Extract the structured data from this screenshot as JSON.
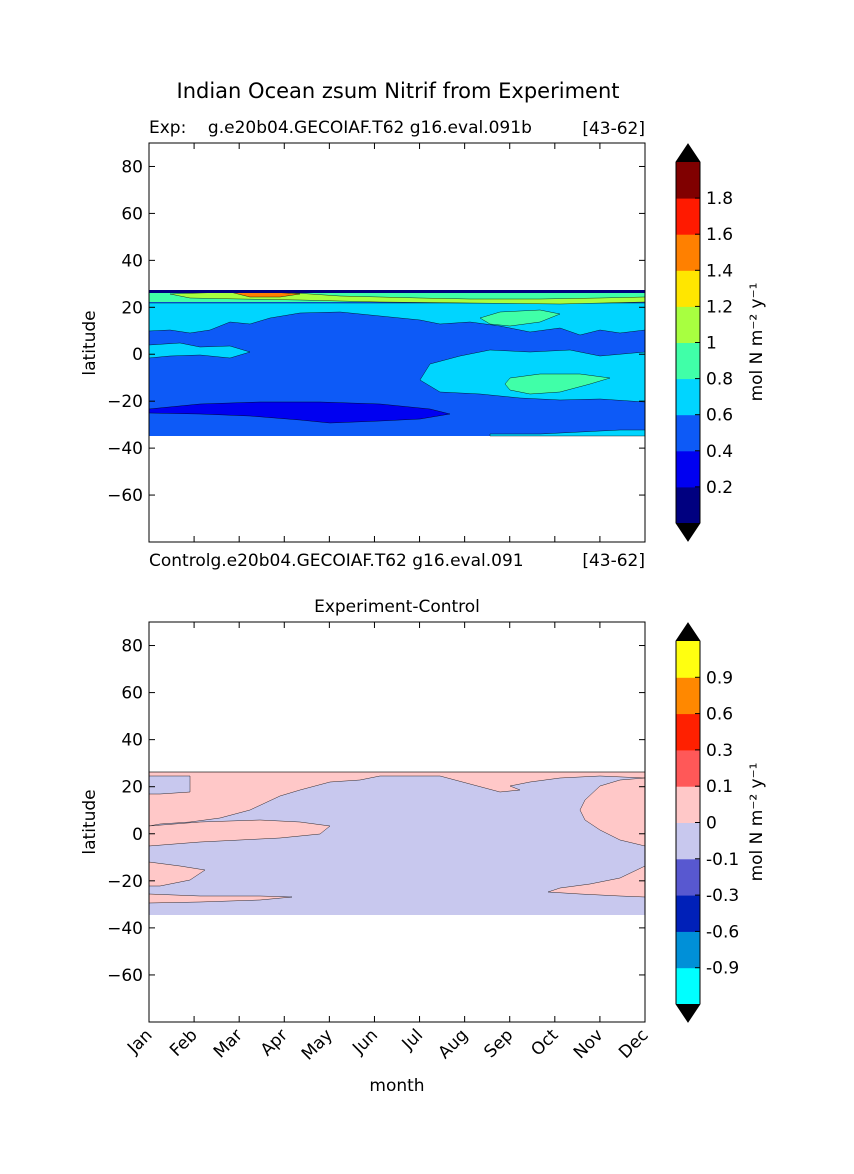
{
  "suptitle": "Indian Ocean zsum Nitrif from Experiment",
  "chart_data": [
    {
      "type": "heatmap",
      "panel": "experiment",
      "title_left": "Exp:    g.e20b04.GECOIAF.T62 g16.eval.091b",
      "title_right": "[43-62]",
      "xlabel": "",
      "ylabel": "latitude",
      "ylim": [
        -80,
        90
      ],
      "yticks": [
        80,
        60,
        40,
        20,
        0,
        -20,
        -40,
        -60
      ],
      "x_categories": [
        "Jan",
        "Feb",
        "Mar",
        "Apr",
        "May",
        "Jun",
        "Jul",
        "Aug",
        "Sep",
        "Oct",
        "Nov",
        "Dec"
      ],
      "data_lat_range": [
        -34,
        27
      ],
      "colorbar": {
        "label": "mol N m⁻² y⁻¹",
        "levels": [
          0.2,
          0.4,
          0.6,
          0.8,
          1,
          1.2,
          1.4,
          1.6,
          1.8
        ],
        "tick_labels": [
          "0.2",
          "0.4",
          "0.6",
          "0.8",
          "1",
          "1.2",
          "1.4",
          "1.6",
          "1.8"
        ],
        "colors": [
          "#000080",
          "#0000f1",
          "#0d5af7",
          "#00d5ff",
          "#40ffa8",
          "#a8ff40",
          "#ffe600",
          "#ff8000",
          "#ff1a00",
          "#800000"
        ],
        "extend": "both"
      },
      "contour_regions": [
        {
          "value_band": "0.4-0.6",
          "desc": "background field -34 to 25 N"
        },
        {
          "value_band": "0.6-0.8",
          "desc": "northern band 14-22 N all months, south-east band Sep-Dec around -5 to -18"
        },
        {
          "value_band": "0.8-1.0",
          "desc": "patch around -10 in Oct; 20 N in Aug-Sep"
        },
        {
          "value_band": "0.2-0.4",
          "desc": "band near -25 S Jan-Aug"
        },
        {
          "value_band": "1.0-1.8",
          "desc": "thin band 21-27 N"
        }
      ]
    },
    {
      "type": "heatmap",
      "panel": "difference",
      "title_left": "Controlg.e20b04.GECOIAF.T62 g16.eval.091",
      "title_right": "[43-62]",
      "title": "Experiment-Control",
      "xlabel": "month",
      "ylabel": "latitude",
      "ylim": [
        -80,
        90
      ],
      "yticks": [
        80,
        60,
        40,
        20,
        0,
        -20,
        -40,
        -60
      ],
      "x_categories": [
        "Jan",
        "Feb",
        "Mar",
        "Apr",
        "May",
        "Jun",
        "Jul",
        "Aug",
        "Sep",
        "Oct",
        "Nov",
        "Dec"
      ],
      "data_lat_range": [
        -34,
        27
      ],
      "colorbar": {
        "label": "mol N m⁻² y⁻¹",
        "levels": [
          -0.9,
          -0.6,
          -0.3,
          -0.1,
          0,
          0.1,
          0.3,
          0.6,
          0.9
        ],
        "tick_labels": [
          "-0.9",
          "-0.6",
          "-0.3",
          "-0.1",
          "0",
          "0.1",
          "0.3",
          "0.6",
          "0.9"
        ],
        "colors": [
          "#00ffff",
          "#0090d8",
          "#0020b8",
          "#5858d0",
          "#c8c8ee",
          "#ffc8c8",
          "#ff5858",
          "#ff2000",
          "#ff8800",
          "#ffff10"
        ],
        "extend": "both"
      },
      "contour_regions": [
        {
          "value_band": "-0.1-0",
          "desc": "most of domain, especially Jun-Oct"
        },
        {
          "value_band": "0-0.1",
          "desc": "north band Jan-May, equatorial band Jan-Apr, Oct-Dec south and north"
        }
      ]
    }
  ]
}
